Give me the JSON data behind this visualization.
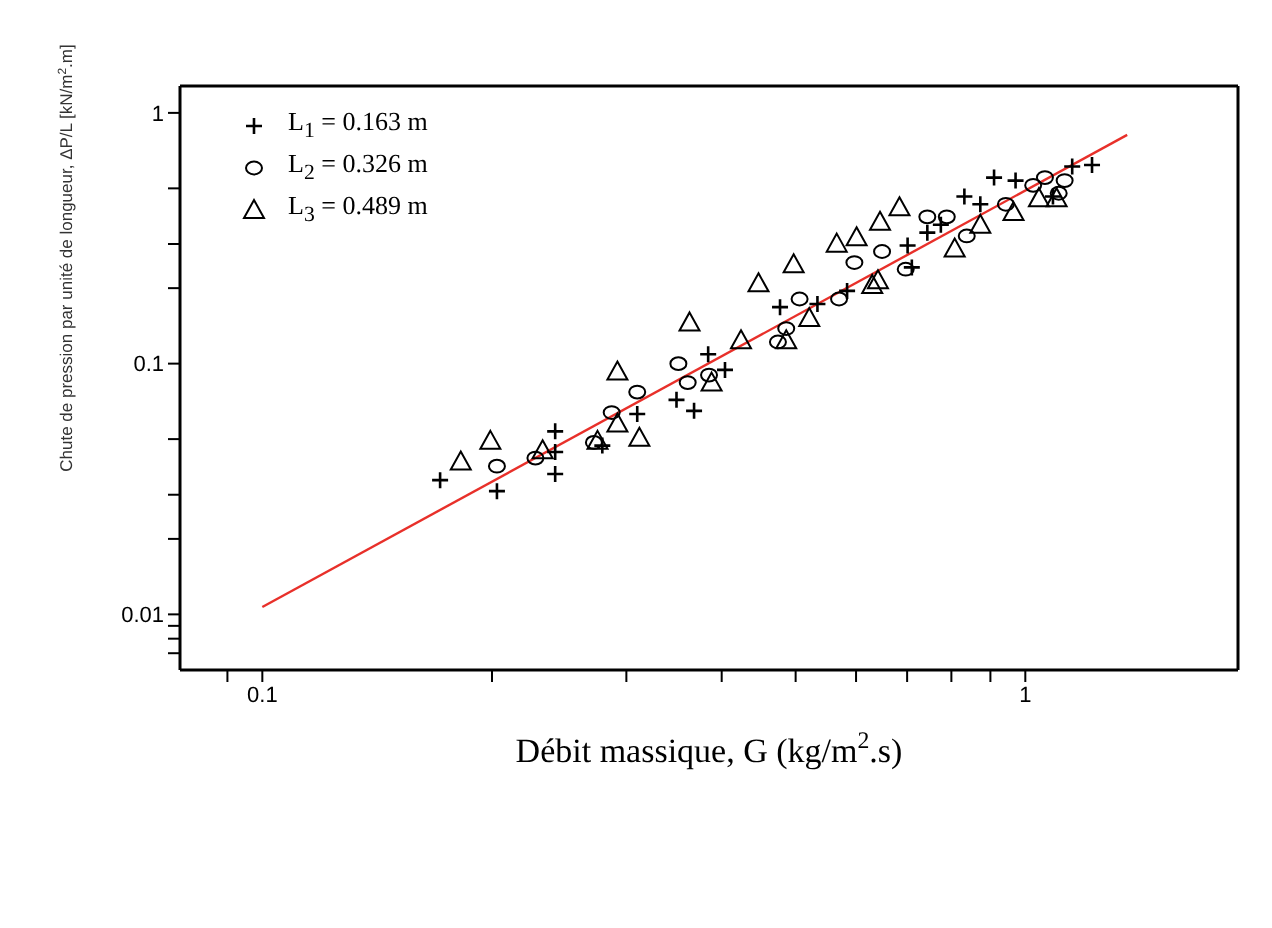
{
  "chart_data": {
    "type": "scatter",
    "xlabel": "Débit massique, G (kg/m$^{2}$.s)",
    "ylabel": "Chute de pression par unité de longueur, ΔP/L [kN/m$^{2}$.m]",
    "log": "xy",
    "legend": "top left",
    "xlim": [
      0.078,
      1.9
    ],
    "ylim": [
      0.006,
      1.28
    ],
    "xticks": [
      {
        "value": 0.09,
        "label": null
      },
      0.1,
      {
        "value": 0.2,
        "label": null
      },
      {
        "value": 0.3,
        "label": null
      },
      {
        "value": 0.4,
        "label": null
      },
      {
        "value": 0.5,
        "label": null
      },
      {
        "value": 0.6,
        "label": null
      },
      {
        "value": 0.7,
        "label": null
      },
      {
        "value": 0.8,
        "label": null
      },
      {
        "value": 0.9,
        "label": null
      },
      1
    ],
    "yticks": [
      {
        "value": 0.007,
        "label": null
      },
      {
        "value": 0.008,
        "label": null
      },
      {
        "value": 0.009,
        "label": null
      },
      0.01,
      {
        "value": 0.02,
        "label": null
      },
      {
        "value": 0.03,
        "label": null
      },
      {
        "value": 0.05,
        "label": null
      },
      0.1,
      {
        "value": 0.2,
        "label": null
      },
      {
        "value": 0.3,
        "label": null
      },
      {
        "value": 0.5,
        "label": null
      },
      1
    ],
    "series": [
      {
        "name": "L$_{1}$ = 0.163 m",
        "color": "#000000",
        "marker": "cross",
        "x": [
          0.171,
          0.203,
          0.242,
          0.242,
          0.242,
          0.279,
          0.31,
          0.349,
          0.368,
          0.384,
          0.404,
          0.477,
          0.534,
          0.584,
          0.701,
          0.71,
          0.744,
          0.775,
          0.832,
          0.873,
          0.91,
          0.971,
          1.087,
          1.152,
          1.223
        ],
        "values": [
          0.0343,
          0.031,
          0.0537,
          0.0444,
          0.0363,
          0.0471,
          0.063,
          0.0717,
          0.0648,
          0.109,
          0.0944,
          0.168,
          0.173,
          0.195,
          0.296,
          0.242,
          0.333,
          0.358,
          0.464,
          0.432,
          0.552,
          0.537,
          0.464,
          0.611,
          0.62
        ]
      },
      {
        "name": "L$_{2}$ = 0.326 m",
        "color": "#000000",
        "marker": "circle",
        "x": [
          0.203,
          0.228,
          0.272,
          0.287,
          0.31,
          0.351,
          0.361,
          0.385,
          0.474,
          0.486,
          0.506,
          0.57,
          0.597,
          0.649,
          0.697,
          0.744,
          0.789,
          0.838,
          0.943,
          1.024,
          1.061,
          1.106,
          1.126
        ],
        "values": [
          0.039,
          0.042,
          0.0485,
          0.0638,
          0.077,
          0.1,
          0.084,
          0.09,
          0.122,
          0.138,
          0.181,
          0.181,
          0.253,
          0.28,
          0.238,
          0.385,
          0.385,
          0.323,
          0.432,
          0.514,
          0.552,
          0.478,
          0.537
        ]
      },
      {
        "name": "L$_{3}$ = 0.489 m",
        "color": "#000000",
        "marker": "triangle",
        "x": [
          0.182,
          0.199,
          0.233,
          0.275,
          0.292,
          0.292,
          0.312,
          0.363,
          0.388,
          0.424,
          0.447,
          0.486,
          0.497,
          0.521,
          0.566,
          0.601,
          0.63,
          0.641,
          0.645,
          0.684,
          0.808,
          0.873,
          0.965,
          1.042,
          1.099
        ],
        "values": [
          0.0407,
          0.0492,
          0.0451,
          0.0492,
          0.093,
          0.0577,
          0.0506,
          0.146,
          0.084,
          0.124,
          0.209,
          0.124,
          0.249,
          0.152,
          0.301,
          0.319,
          0.206,
          0.215,
          0.368,
          0.42,
          0.288,
          0.358,
          0.402,
          0.457,
          0.457
        ]
      },
      {
        "type": "line",
        "color": "#e8302a",
        "marker": "none",
        "line_style": "solid",
        "x": [
          0.1,
          1.36
        ],
        "values": [
          0.0107,
          0.817
        ]
      }
    ]
  }
}
